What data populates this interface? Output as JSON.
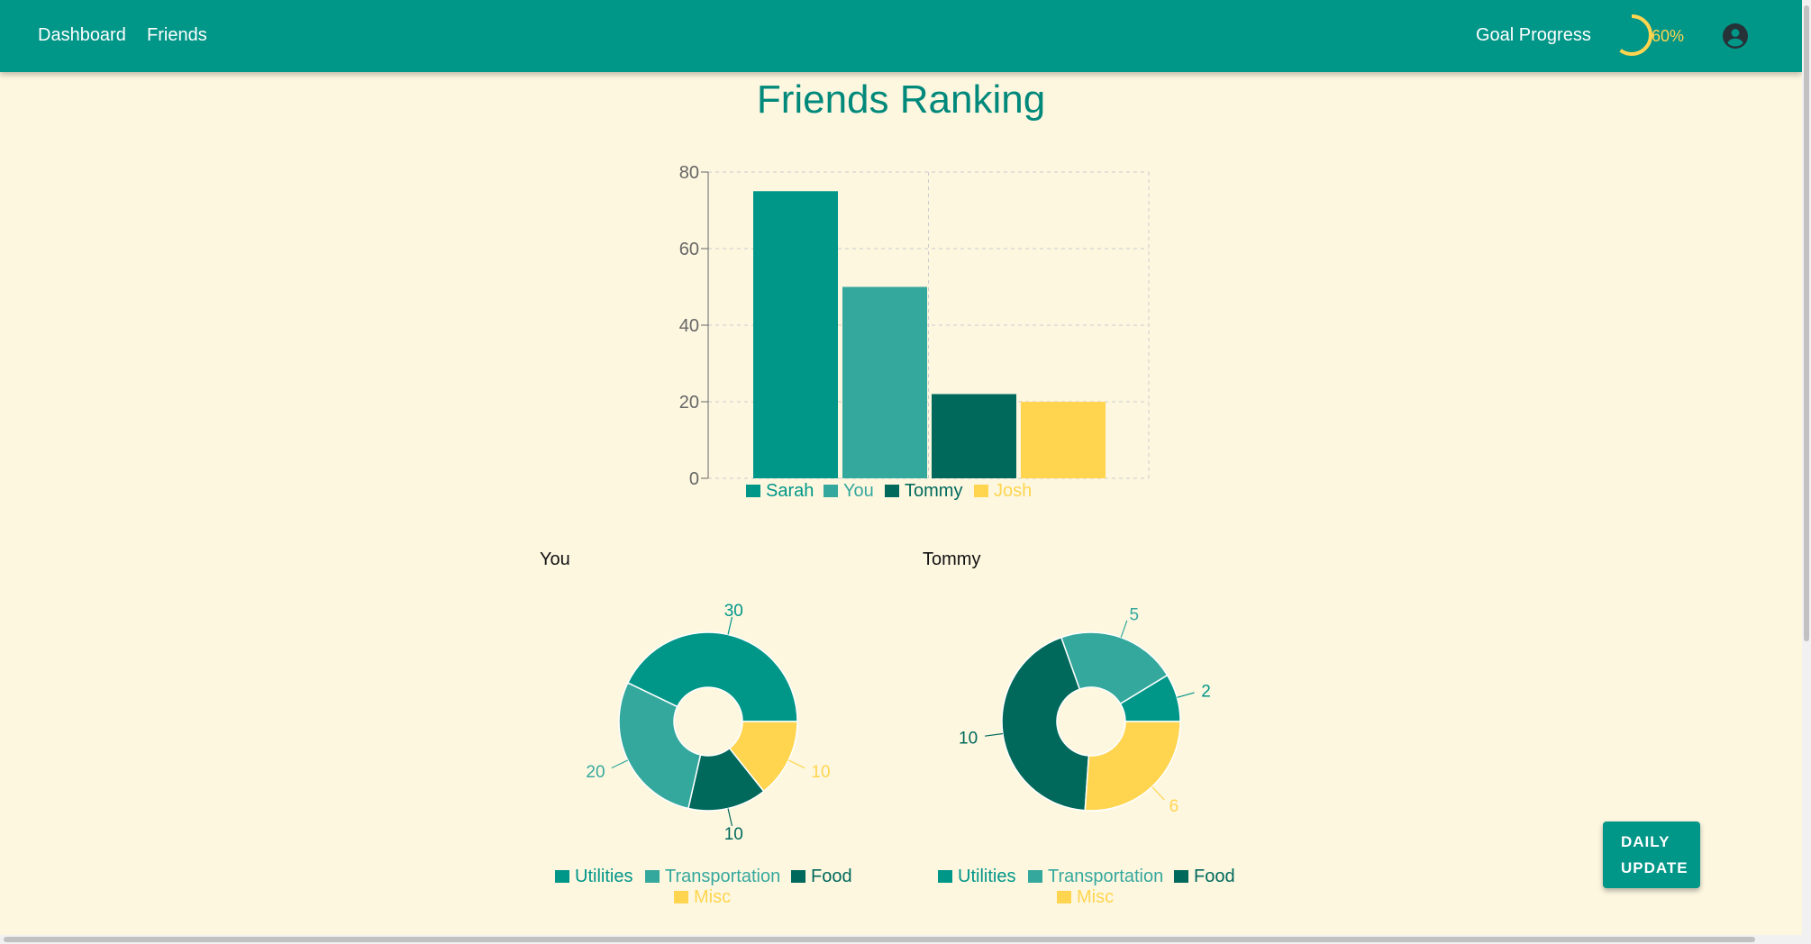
{
  "nav": {
    "dashboard": "Dashboard",
    "friends": "Friends",
    "goal_label": "Goal Progress",
    "goal_percent_label": "60%",
    "goal_progress": 0.6,
    "account_icon": "account-circle-icon"
  },
  "page": {
    "title": "Friends Ranking"
  },
  "colors": {
    "primary": "#009688",
    "series": [
      "#009688",
      "#35a89d",
      "#00695c",
      "#ffd54f"
    ],
    "background": "#fdf7e0"
  },
  "chart_data": [
    {
      "type": "bar",
      "title": "",
      "categories": [
        "Sarah",
        "You",
        "Tommy",
        "Josh"
      ],
      "values": [
        75,
        50,
        22,
        20
      ],
      "ylim": [
        0,
        80
      ],
      "yticks": [
        0,
        20,
        40,
        60,
        80
      ],
      "grid": true,
      "legend": "bottom"
    },
    {
      "type": "pie",
      "title": "You",
      "labels": [
        "Utilities",
        "Transportation",
        "Food",
        "Misc"
      ],
      "values": [
        30,
        20,
        10,
        10
      ],
      "donut": true,
      "legend": "bottom"
    },
    {
      "type": "pie",
      "title": "Tommy",
      "labels": [
        "Utilities",
        "Transportation",
        "Food",
        "Misc"
      ],
      "values": [
        2,
        5,
        10,
        6
      ],
      "donut": true,
      "legend": "bottom"
    }
  ],
  "actions": {
    "daily_update": [
      "DAILY",
      "UPDATE"
    ]
  }
}
